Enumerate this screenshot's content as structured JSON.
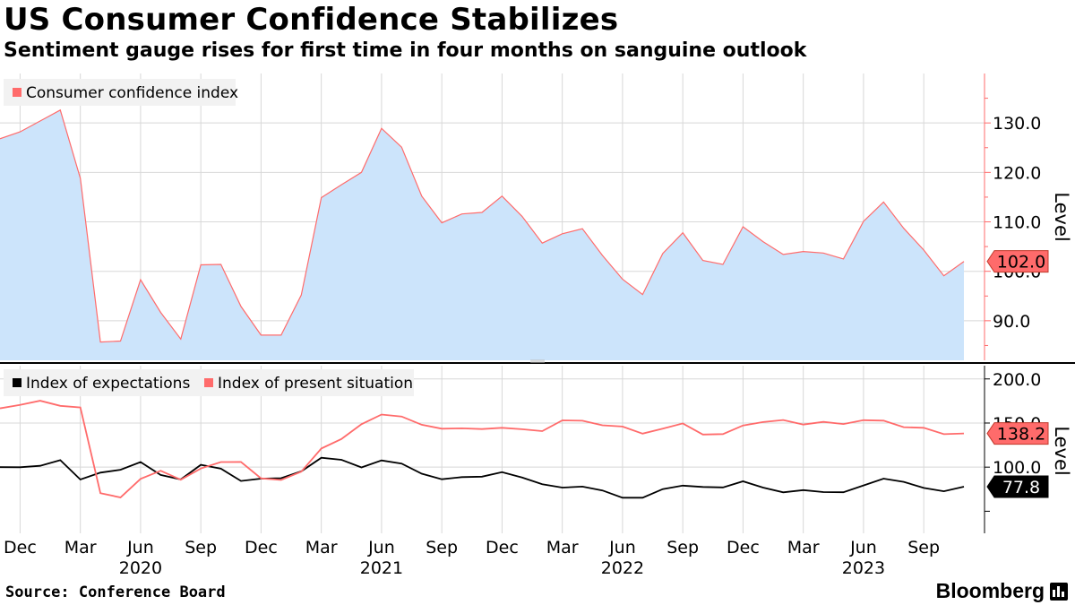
{
  "title": "US Consumer Confidence Stabilizes",
  "subtitle": "Sentiment gauge rises for first time in four months on sanguine outlook",
  "source": "Source: Conference Board",
  "brand": "Bloomberg",
  "colors": {
    "area_fill": "#cce4fb",
    "red": "#ff6b6b",
    "black": "#000000",
    "grid": "#d8d8d8",
    "axis": "#ff6b6b",
    "legend_bg": "#f2f2f2"
  },
  "chart_data": [
    {
      "type": "area",
      "panel": "top",
      "legend": [
        "Consumer confidence index"
      ],
      "ylabel": "Level",
      "ylim": [
        82,
        140
      ],
      "yticks": [
        90,
        100,
        110,
        120,
        130
      ],
      "ytick_labels": [
        "90.0",
        "100.0",
        "110.0",
        "120.0",
        "130.0"
      ],
      "last_value_label": "102.0",
      "x": [
        "2019-11",
        "2019-12",
        "2020-01",
        "2020-02",
        "2020-03",
        "2020-04",
        "2020-05",
        "2020-06",
        "2020-07",
        "2020-08",
        "2020-09",
        "2020-10",
        "2020-11",
        "2020-12",
        "2021-01",
        "2021-02",
        "2021-03",
        "2021-04",
        "2021-05",
        "2021-06",
        "2021-07",
        "2021-08",
        "2021-09",
        "2021-10",
        "2021-11",
        "2021-12",
        "2022-01",
        "2022-02",
        "2022-03",
        "2022-04",
        "2022-05",
        "2022-06",
        "2022-07",
        "2022-08",
        "2022-09",
        "2022-10",
        "2022-11",
        "2022-12",
        "2023-01",
        "2023-02",
        "2023-03",
        "2023-04",
        "2023-05",
        "2023-06",
        "2023-07",
        "2023-08",
        "2023-09",
        "2023-10",
        "2023-11"
      ],
      "series": [
        {
          "name": "Consumer confidence index",
          "values": [
            126.8,
            128.2,
            130.4,
            132.6,
            118.8,
            85.7,
            85.9,
            98.3,
            91.7,
            86.3,
            101.3,
            101.4,
            92.9,
            87.1,
            87.1,
            95.2,
            114.9,
            117.5,
            120.0,
            128.9,
            125.1,
            115.2,
            109.8,
            111.6,
            111.9,
            115.2,
            111.1,
            105.7,
            107.6,
            108.6,
            103.2,
            98.4,
            95.3,
            103.6,
            107.8,
            102.2,
            101.4,
            109.0,
            106.0,
            103.4,
            104.0,
            103.7,
            102.5,
            110.1,
            114.0,
            108.7,
            104.3,
            99.1,
            102.0
          ]
        }
      ]
    },
    {
      "type": "line",
      "panel": "bottom",
      "legend": [
        "Index of expectations",
        "Index of present situation"
      ],
      "ylabel": "Level",
      "ylim": [
        25,
        215
      ],
      "yticks": [
        100,
        150,
        200
      ],
      "ytick_labels": [
        "100.0",
        "150.0",
        "200.0"
      ],
      "last_value_labels": [
        "77.8",
        "138.2"
      ],
      "series": [
        {
          "name": "Index of expectations",
          "color": "#000000",
          "values": [
            100.0,
            99.9,
            101.5,
            107.9,
            86.0,
            93.8,
            97.0,
            105.8,
            91.1,
            86.1,
            102.6,
            98.3,
            84.3,
            87.0,
            87.5,
            95.2,
            110.7,
            108.3,
            99.7,
            107.6,
            104.0,
            92.6,
            86.3,
            88.7,
            89.2,
            94.3,
            88.2,
            80.7,
            76.8,
            77.9,
            73.6,
            65.3,
            65.3,
            75.1,
            79.1,
            77.5,
            77.0,
            83.9,
            76.8,
            71.4,
            74.0,
            71.7,
            71.5,
            79.3,
            87.0,
            83.3,
            76.4,
            72.7,
            77.8
          ]
        },
        {
          "name": "Index of present situation",
          "color": "#ff6b6b",
          "values": [
            166.6,
            170.5,
            175.3,
            169.5,
            167.7,
            70.5,
            65.6,
            86.7,
            95.9,
            85.8,
            98.5,
            105.8,
            105.9,
            87.3,
            85.5,
            94.9,
            121.1,
            131.9,
            148.7,
            159.6,
            157.4,
            148.0,
            143.6,
            144.0,
            143.2,
            144.6,
            143.0,
            140.8,
            153.0,
            152.6,
            147.4,
            146.0,
            138.0,
            143.7,
            149.6,
            137.0,
            137.5,
            147.2,
            151.1,
            153.4,
            148.2,
            151.3,
            148.9,
            153.2,
            152.7,
            145.3,
            144.6,
            137.4,
            138.2
          ]
        }
      ]
    }
  ],
  "x_axis": {
    "month_ticks": [
      {
        "label": "Dec",
        "date": "2019-12"
      },
      {
        "label": "Mar",
        "date": "2020-03"
      },
      {
        "label": "Jun",
        "date": "2020-06"
      },
      {
        "label": "Sep",
        "date": "2020-09"
      },
      {
        "label": "Dec",
        "date": "2020-12"
      },
      {
        "label": "Mar",
        "date": "2021-03"
      },
      {
        "label": "Jun",
        "date": "2021-06"
      },
      {
        "label": "Sep",
        "date": "2021-09"
      },
      {
        "label": "Dec",
        "date": "2021-12"
      },
      {
        "label": "Mar",
        "date": "2022-03"
      },
      {
        "label": "Jun",
        "date": "2022-06"
      },
      {
        "label": "Sep",
        "date": "2022-09"
      },
      {
        "label": "Dec",
        "date": "2022-12"
      },
      {
        "label": "Mar",
        "date": "2023-03"
      },
      {
        "label": "Jun",
        "date": "2023-06"
      },
      {
        "label": "Sep",
        "date": "2023-09"
      }
    ],
    "year_labels": [
      {
        "label": "2020",
        "date": "2020-06"
      },
      {
        "label": "2021",
        "date": "2021-06"
      },
      {
        "label": "2022",
        "date": "2022-06"
      },
      {
        "label": "2023",
        "date": "2023-06"
      }
    ]
  }
}
